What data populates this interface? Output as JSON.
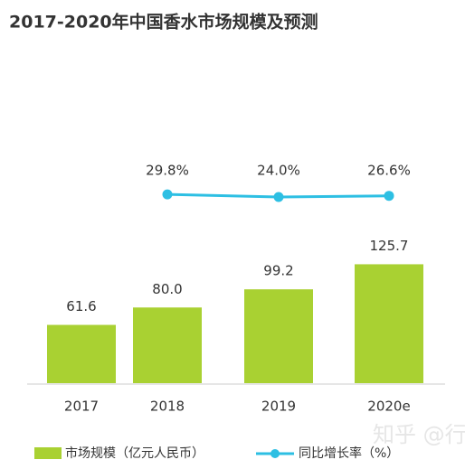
{
  "chart_data": {
    "type": "bar_line",
    "title": "2017-2020年中国香水市场规模及预测",
    "categories": [
      "2017",
      "2018",
      "2019",
      "2020e"
    ],
    "series": [
      {
        "name": "市场规模（亿元人民币）",
        "color": "#a9d132",
        "values": [
          61.6,
          80.0,
          99.2,
          125.7
        ],
        "value_labels": [
          "61.6",
          "80.0",
          "99.2",
          "125.7"
        ]
      },
      {
        "name": "同比增长率（%）",
        "color": "#2dbfe3",
        "axis": "y2",
        "values": [
          null,
          29.8,
          24.0,
          26.6
        ],
        "value_labels": [
          null,
          "29.8%",
          "24.0%",
          "26.6%"
        ]
      }
    ],
    "ylim": [
      0,
      150
    ],
    "y2lim": [
      0,
      60
    ],
    "watermark": "知乎 @行业报告优选"
  }
}
